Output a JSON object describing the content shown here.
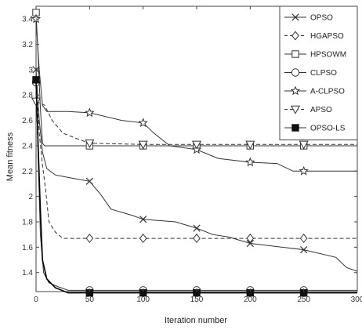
{
  "chart_data": {
    "type": "line",
    "xlabel": "Iteration number",
    "ylabel": "Mean fitness",
    "xlim": [
      0,
      300
    ],
    "ylim": [
      1.25,
      3.5
    ],
    "xticks": [
      "0",
      "50",
      "100",
      "150",
      "200",
      "250",
      "300"
    ],
    "yticks": [
      "1.4",
      "1.6",
      "1.8",
      "2",
      "2.2",
      "2.4",
      "2.6",
      "2.8",
      "3",
      "3.2",
      "3.4"
    ],
    "legend_position": "top-right",
    "grid": false,
    "series": [
      {
        "name": "OPSO",
        "marker": "x",
        "dash": "solid",
        "points": [
          [
            0,
            3.0
          ],
          [
            3,
            2.6
          ],
          [
            6,
            2.35
          ],
          [
            10,
            2.22
          ],
          [
            18,
            2.17
          ],
          [
            30,
            2.15
          ],
          [
            50,
            2.12
          ],
          [
            60,
            2.02
          ],
          [
            70,
            1.9
          ],
          [
            90,
            1.85
          ],
          [
            100,
            1.82
          ],
          [
            130,
            1.8
          ],
          [
            150,
            1.75
          ],
          [
            165,
            1.7
          ],
          [
            180,
            1.68
          ],
          [
            200,
            1.63
          ],
          [
            230,
            1.6
          ],
          [
            250,
            1.58
          ],
          [
            280,
            1.52
          ],
          [
            290,
            1.44
          ],
          [
            300,
            1.41
          ]
        ]
      },
      {
        "name": "HGAPSO",
        "marker": "diamond",
        "dash": "dashed",
        "points": [
          [
            0,
            2.9
          ],
          [
            3,
            2.5
          ],
          [
            6,
            2.25
          ],
          [
            9,
            2.05
          ],
          [
            12,
            1.8
          ],
          [
            18,
            1.72
          ],
          [
            25,
            1.67
          ],
          [
            50,
            1.67
          ],
          [
            100,
            1.67
          ],
          [
            150,
            1.67
          ],
          [
            200,
            1.67
          ],
          [
            250,
            1.67
          ],
          [
            300,
            1.67
          ]
        ]
      },
      {
        "name": "HPSOWM",
        "marker": "square",
        "dash": "solid",
        "points": [
          [
            0,
            3.45
          ],
          [
            2,
            3.1
          ],
          [
            4,
            2.7
          ],
          [
            6,
            2.42
          ],
          [
            8,
            2.4
          ],
          [
            50,
            2.4
          ],
          [
            100,
            2.4
          ],
          [
            150,
            2.4
          ],
          [
            200,
            2.4
          ],
          [
            250,
            2.4
          ],
          [
            300,
            2.4
          ]
        ]
      },
      {
        "name": "CLPSO",
        "marker": "circle",
        "dash": "solid",
        "points": [
          [
            0,
            2.9
          ],
          [
            2,
            2.3
          ],
          [
            4,
            1.7
          ],
          [
            7,
            1.4
          ],
          [
            12,
            1.32
          ],
          [
            20,
            1.29
          ],
          [
            30,
            1.26
          ],
          [
            50,
            1.26
          ],
          [
            100,
            1.26
          ],
          [
            150,
            1.26
          ],
          [
            200,
            1.26
          ],
          [
            250,
            1.26
          ],
          [
            300,
            1.26
          ]
        ]
      },
      {
        "name": "A-CLPSO",
        "marker": "star",
        "dash": "solid",
        "points": [
          [
            0,
            3.4
          ],
          [
            3,
            3.0
          ],
          [
            6,
            2.72
          ],
          [
            10,
            2.67
          ],
          [
            30,
            2.67
          ],
          [
            50,
            2.66
          ],
          [
            80,
            2.6
          ],
          [
            100,
            2.58
          ],
          [
            110,
            2.5
          ],
          [
            125,
            2.4
          ],
          [
            150,
            2.37
          ],
          [
            170,
            2.3
          ],
          [
            200,
            2.27
          ],
          [
            225,
            2.26
          ],
          [
            240,
            2.2
          ],
          [
            250,
            2.2
          ],
          [
            300,
            2.2
          ]
        ]
      },
      {
        "name": "APSO",
        "marker": "triangle-down",
        "dash": "dashed",
        "points": [
          [
            0,
            2.75
          ],
          [
            8,
            2.72
          ],
          [
            15,
            2.6
          ],
          [
            25,
            2.5
          ],
          [
            40,
            2.45
          ],
          [
            50,
            2.42
          ],
          [
            100,
            2.41
          ],
          [
            150,
            2.41
          ],
          [
            200,
            2.41
          ],
          [
            250,
            2.41
          ],
          [
            300,
            2.41
          ]
        ]
      },
      {
        "name": "OPSO-LS",
        "marker": "filled-square",
        "dash": "solid",
        "points": [
          [
            0,
            2.92
          ],
          [
            2,
            2.4
          ],
          [
            4,
            1.9
          ],
          [
            6,
            1.5
          ],
          [
            10,
            1.35
          ],
          [
            18,
            1.28
          ],
          [
            30,
            1.24
          ],
          [
            50,
            1.24
          ],
          [
            100,
            1.24
          ],
          [
            150,
            1.24
          ],
          [
            200,
            1.24
          ],
          [
            250,
            1.24
          ],
          [
            300,
            1.24
          ]
        ]
      }
    ],
    "marker_x": [
      0,
      50,
      100,
      150,
      200,
      250
    ]
  }
}
